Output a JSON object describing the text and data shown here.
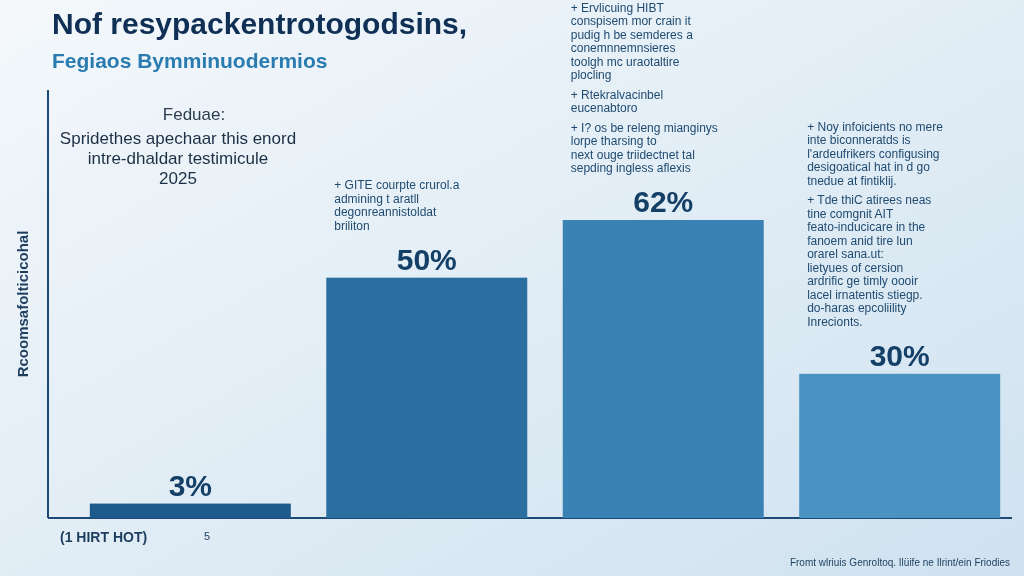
{
  "chart_data": {
    "type": "bar",
    "title": "Nof resypackentrotogodsins,",
    "subtitle": "Fegiaos Bymminuodermios",
    "ylabel": "Rcoomsafolticicohal",
    "xlabel": "(1 HIRT HOT)",
    "categories": [
      null,
      null,
      null,
      null
    ],
    "values": [
      3,
      50,
      62,
      30
    ],
    "colors": [
      "#1d5a8c",
      "#2a6fa0",
      "#3a82b3",
      "#4a92c2"
    ],
    "value_labels": [
      "3%",
      "50%",
      "62%",
      "30%"
    ],
    "annotations": [
      "Feduae:",
      "Spridethes apechaar this enord\nintre-dhaldar testimicule\n2025",
      "5",
      "Fromt wlriuis Genroltoq. Ilüife ne Ilrint/ein Friodies",
      "+ GITE courpte crurol.a\nadmining t aratll\ndegonreannistoldat\nbriliton",
      "+ Ervlicuing HIBT\nconspisem mor crain it\npudig h be semderes a\nconemnnemnsieres\ntoolgh mc uraotaltire\nplocling",
      "+ Rtekralvacinbel\neucenabtoro",
      "+ I? os be releng mianginys\nlorpe tharsing to\nnext ouge triidectnet tal\nsepding ingless aflexis",
      "+ Noy infoicients no mere\ninte biconneratds is\nl'ardeufrikers configusing\ndesigoatical hat in d go\ntnedue at fintiklij.",
      "+ Tde thiC atirees neas\ntine comgnit AIT\nfeato-inducicare in the\nfanoem anid tire lun\norarel sana.ut:\nlietyues of cersion\nardrific ge timly oooir\nlacel irnatentis stiegp.\ndo-haras epcoliility\nInrecionts."
    ]
  }
}
